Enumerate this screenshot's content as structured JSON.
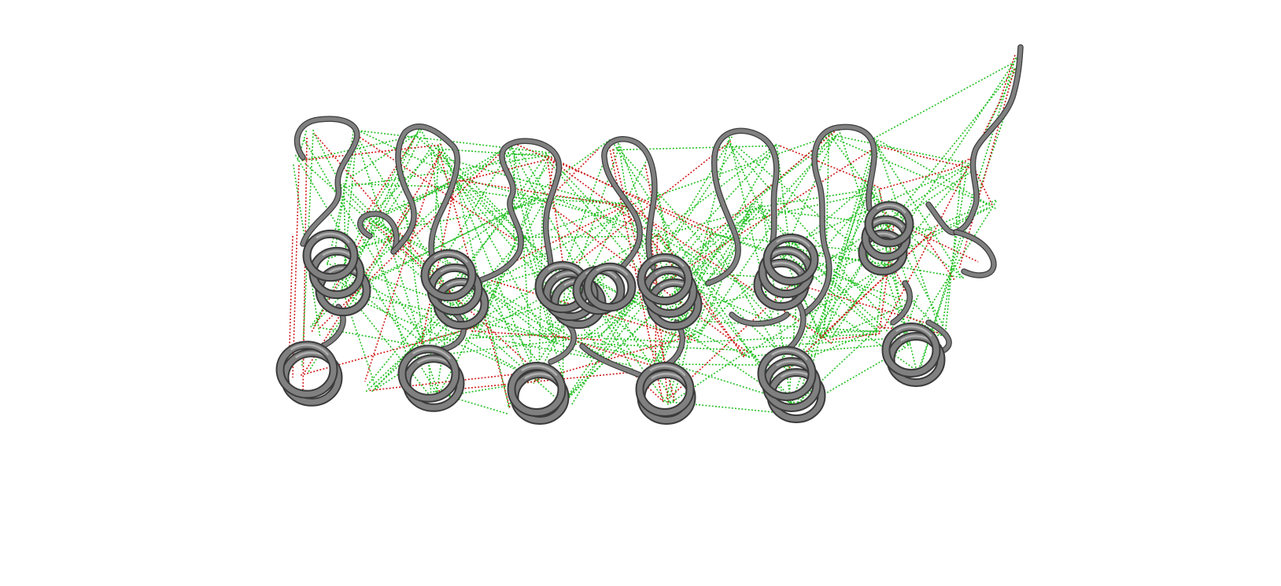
{
  "viewer": {
    "background": "#ffffff",
    "structure": {
      "representation": "ribbon cartoon",
      "ribbon_color": "#808080",
      "helix_count": 13
    },
    "contacts": {
      "agreeing_color": "#22c022",
      "disagreeing_color": "#d01818",
      "line_style": "dotted"
    }
  }
}
